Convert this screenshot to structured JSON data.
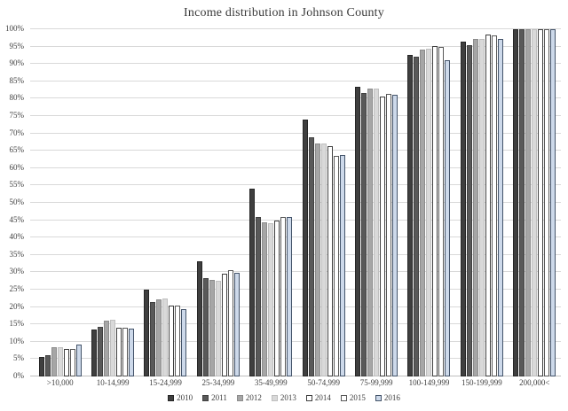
{
  "chart_data": {
    "type": "bar",
    "title": "Income distribution in Johnson County",
    "xlabel": "",
    "ylabel": "",
    "ylim": [
      0,
      100
    ],
    "ytick_step": 5,
    "grid": "horizontal",
    "legend_position": "bottom",
    "ytick_labels": [
      "0%",
      "5%",
      "10%",
      "15%",
      "20%",
      "25%",
      "30%",
      "35%",
      "40%",
      "45%",
      "50%",
      "55%",
      "60%",
      "65%",
      "70%",
      "75%",
      "80%",
      "85%",
      "90%",
      "95%",
      "100%"
    ],
    "categories": [
      ">10,000",
      "10-14,999",
      "15-24,999",
      "25-34,999",
      "35-49,999",
      "50-74,999",
      "75-99,999",
      "100-149,999",
      "150-199,999",
      "200,000<"
    ],
    "series": [
      {
        "name": "2010",
        "fill": "#3f3f3f",
        "border": "#262626",
        "values": [
          5.7,
          13.5,
          25.0,
          33.2,
          54.0,
          74.0,
          83.5,
          92.7,
          96.4,
          100
        ]
      },
      {
        "name": "2011",
        "fill": "#595959",
        "border": "#404040",
        "values": [
          6.1,
          14.3,
          21.4,
          28.4,
          46.0,
          69.0,
          81.7,
          92.0,
          95.5,
          100
        ]
      },
      {
        "name": "2012",
        "fill": "#a6a6a6",
        "border": "#8c8c8c",
        "values": [
          8.3,
          16.2,
          22.2,
          27.7,
          44.3,
          67.0,
          83.0,
          94.2,
          97.1,
          100
        ]
      },
      {
        "name": "2013",
        "fill": "#d9d9d9",
        "border": "#bfbfbf",
        "values": [
          8.5,
          16.3,
          22.4,
          27.6,
          44.2,
          67.0,
          82.8,
          94.4,
          97.1,
          100
        ]
      },
      {
        "name": "2014",
        "fill": "#ffffff",
        "border": "#404040",
        "values": [
          8.0,
          14.1,
          20.5,
          29.6,
          44.9,
          66.4,
          80.7,
          95.2,
          98.6,
          100
        ]
      },
      {
        "name": "2015",
        "fill": "#ffffff",
        "border": "#595959",
        "values": [
          7.8,
          14.1,
          20.5,
          30.7,
          46.0,
          63.5,
          81.3,
          94.8,
          98.2,
          100
        ]
      },
      {
        "name": "2016",
        "fill": "#cdd9ea",
        "border": "#44546a",
        "values": [
          9.2,
          13.9,
          19.4,
          29.9,
          45.8,
          63.9,
          81.0,
          91.0,
          97.1,
          100
        ]
      }
    ],
    "colors": {
      "gridline": "#d9d9d9",
      "axis_line": "#bfbfbf",
      "text": "#404040",
      "background": "#ffffff"
    }
  }
}
